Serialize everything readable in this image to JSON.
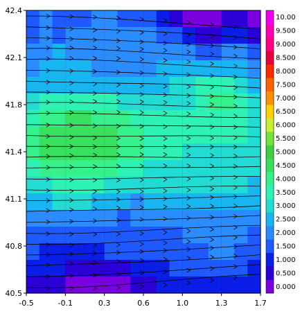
{
  "chart_data": {
    "type": "heatmap",
    "title": "",
    "xlabel": "",
    "ylabel": "",
    "xlim": [
      -0.5,
      1.7
    ],
    "ylim": [
      40.5,
      42.4
    ],
    "x_ticks": [
      "-0.5",
      "-0.1",
      "0.3",
      "0.6",
      "1.0",
      "1.3",
      "1.7"
    ],
    "y_ticks": [
      "40.5",
      "40.8",
      "41.1",
      "41.4",
      "41.8",
      "42.1",
      "42.4"
    ],
    "colorbar": {
      "labels": [
        "0.000",
        "0.500",
        "1.000",
        "1.500",
        "2.000",
        "2.500",
        "3.000",
        "3.500",
        "4.000",
        "4.500",
        "5.000",
        "5.500",
        "6.000",
        "6.500",
        "7.000",
        "7.500",
        "8.000",
        "8.500",
        "9.000",
        "9.500",
        "10.00"
      ],
      "colors": [
        "#7a00e0",
        "#2a00d6",
        "#0a1ee6",
        "#1e5aff",
        "#2a8cff",
        "#18b6f0",
        "#22dcd4",
        "#2ef2b4",
        "#36f08c",
        "#38e060",
        "#40d040",
        "#70e43c",
        "#c8f032",
        "#ffd000",
        "#ff9000",
        "#ff6000",
        "#ff2800",
        "#e6003c",
        "#ff0080",
        "#ff00b4",
        "#f000f0"
      ]
    },
    "field": {
      "description_values": "speed classes on a coarse grid (index into colorbar.colors)",
      "rows_from_top": [
        [
          3,
          4,
          3,
          3,
          3,
          4,
          4,
          3,
          3,
          3,
          2,
          1,
          0,
          0,
          0,
          1,
          1,
          0
        ],
        [
          3,
          4,
          3,
          4,
          4,
          4,
          4,
          4,
          4,
          4,
          3,
          3,
          2,
          1,
          1,
          2,
          2,
          1
        ],
        [
          4,
          4,
          5,
          4,
          4,
          4,
          4,
          4,
          4,
          4,
          4,
          4,
          4,
          3,
          3,
          4,
          4,
          3
        ],
        [
          4,
          5,
          5,
          5,
          5,
          4,
          4,
          4,
          4,
          4,
          5,
          5,
          5,
          5,
          5,
          5,
          5,
          4
        ],
        [
          5,
          5,
          5,
          5,
          5,
          5,
          5,
          5,
          5,
          5,
          5,
          6,
          6,
          7,
          7,
          7,
          6,
          5
        ],
        [
          6,
          7,
          7,
          7,
          7,
          7,
          7,
          6,
          6,
          6,
          6,
          6,
          6,
          7,
          8,
          8,
          7,
          6
        ],
        [
          7,
          8,
          8,
          9,
          9,
          8,
          8,
          8,
          7,
          7,
          7,
          7,
          7,
          7,
          7,
          7,
          7,
          6
        ],
        [
          8,
          9,
          9,
          9,
          9,
          9,
          9,
          8,
          8,
          7,
          7,
          7,
          7,
          7,
          7,
          7,
          7,
          6
        ],
        [
          8,
          9,
          9,
          9,
          9,
          9,
          9,
          8,
          8,
          7,
          7,
          7,
          6,
          6,
          6,
          6,
          6,
          6
        ],
        [
          7,
          8,
          8,
          8,
          8,
          8,
          8,
          7,
          7,
          6,
          6,
          6,
          6,
          6,
          6,
          6,
          6,
          6
        ],
        [
          6,
          6,
          7,
          7,
          7,
          7,
          6,
          6,
          6,
          6,
          6,
          6,
          6,
          6,
          6,
          6,
          6,
          5
        ],
        [
          5,
          5,
          6,
          6,
          6,
          5,
          5,
          5,
          4,
          5,
          5,
          5,
          5,
          5,
          5,
          5,
          5,
          5
        ],
        [
          4,
          4,
          4,
          4,
          4,
          4,
          4,
          3,
          4,
          4,
          4,
          4,
          4,
          4,
          4,
          4,
          4,
          4
        ],
        [
          3,
          3,
          3,
          3,
          3,
          3,
          3,
          3,
          3,
          3,
          3,
          3,
          4,
          4,
          4,
          4,
          4,
          3
        ],
        [
          3,
          2,
          2,
          2,
          2,
          2,
          3,
          3,
          3,
          3,
          3,
          3,
          3,
          3,
          4,
          4,
          3,
          3
        ],
        [
          2,
          2,
          2,
          1,
          1,
          1,
          1,
          1,
          2,
          2,
          2,
          3,
          3,
          3,
          3,
          3,
          3,
          2
        ],
        [
          1,
          1,
          1,
          0,
          0,
          0,
          0,
          0,
          1,
          1,
          2,
          2,
          2,
          2,
          2,
          2,
          2,
          2
        ]
      ]
    },
    "streamlines": "wind flow from west to east, slight southward tilt in north"
  }
}
